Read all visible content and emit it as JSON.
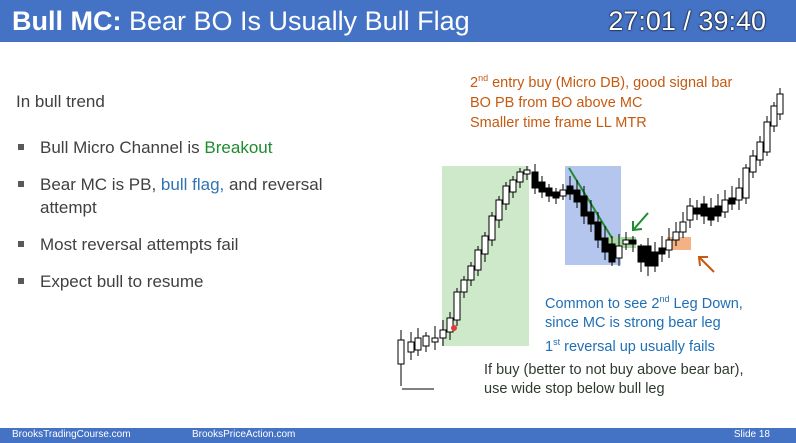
{
  "slide": {
    "title_bold": "Bull MC:",
    "title_rest": " Bear BO Is Usually Bull Flag",
    "timer": "27:01 / 39:40",
    "heading": "In bull trend",
    "bullets": [
      {
        "pre": "Bull Micro Channel is ",
        "accent": "Breakout",
        "post": ""
      },
      {
        "pre": "Bear MC is PB, ",
        "accent": "bull flag,",
        "post": " and reversal attempt"
      },
      {
        "pre": "Most reversal attempts fail",
        "accent": "",
        "post": ""
      },
      {
        "pre": "Expect bull to resume",
        "accent": "",
        "post": ""
      }
    ],
    "notes": {
      "orange": {
        "line1_num": "2",
        "line1_sup": "nd",
        "line1_rest": " entry buy (Micro DB), good signal bar",
        "line2": "BO PB from BO above MC",
        "line3": "Smaller time frame LL MTR"
      },
      "blue": {
        "line1_pre": "Common to see 2",
        "line1_sup": "nd",
        "line1_post": " Leg Down,",
        "line2": "since MC is strong bear leg",
        "line3_num": "1",
        "line3_sup": "st",
        "line3_post": " reversal up usually fails"
      },
      "dark": {
        "line1": "If buy (better to not buy above bear bar),",
        "line2": "use wide stop below bull leg"
      }
    },
    "footer": {
      "left": "BrooksTradingCourse.com",
      "center": "BrooksPriceAction.com",
      "right": "Slide  18"
    }
  },
  "colors": {
    "title_bar": "#4472c4",
    "bull_zone": "#cde9c9",
    "bear_zone": "#b4c6ee",
    "signal_box": "#f4b183",
    "trendline": "#1e8c2e",
    "arrow_green": "#1e8c2e",
    "arrow_orange": "#c55a11"
  }
}
